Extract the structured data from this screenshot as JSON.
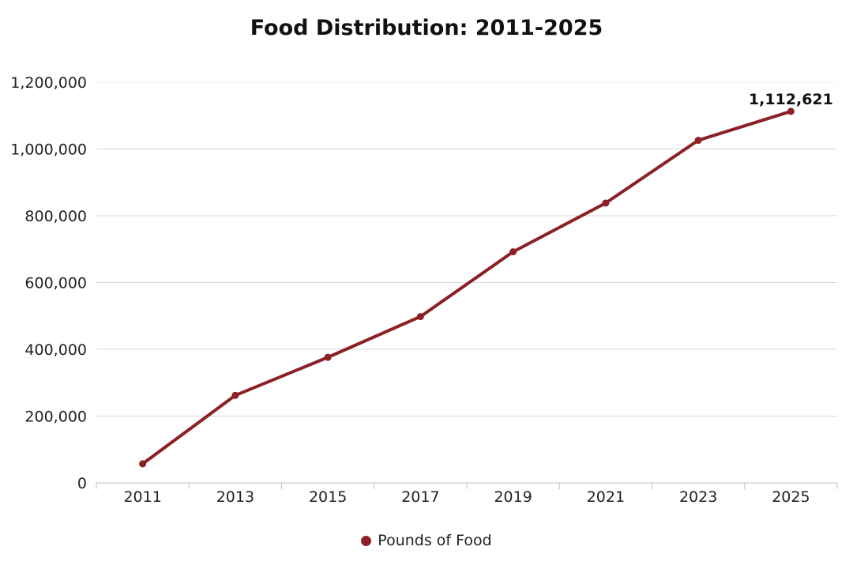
{
  "chart_data": {
    "type": "line",
    "title": "Food Distribution: 2011-2025",
    "xlabel": "",
    "ylabel": "",
    "categories": [
      "2011",
      "2013",
      "2015",
      "2017",
      "2019",
      "2021",
      "2023",
      "2025"
    ],
    "series": [
      {
        "name": "Pounds of Food",
        "values": [
          57000,
          262000,
          376000,
          498000,
          692000,
          838000,
          1026000,
          1112621
        ]
      }
    ],
    "ylim": [
      0,
      1200000
    ],
    "yticks": [
      0,
      200000,
      400000,
      600000,
      800000,
      1000000,
      1200000
    ],
    "ytick_labels": [
      "0",
      "200,000",
      "400,000",
      "600,000",
      "800,000",
      "1,000,000",
      "1,200,000"
    ],
    "annotations": [
      {
        "category": "2025",
        "text": "1,112,621"
      }
    ],
    "grid": true,
    "legend": "bottom-center",
    "colors": {
      "series": "#8b2027",
      "grid": "#d9d9d9",
      "axis": "#bfbfbf"
    }
  }
}
